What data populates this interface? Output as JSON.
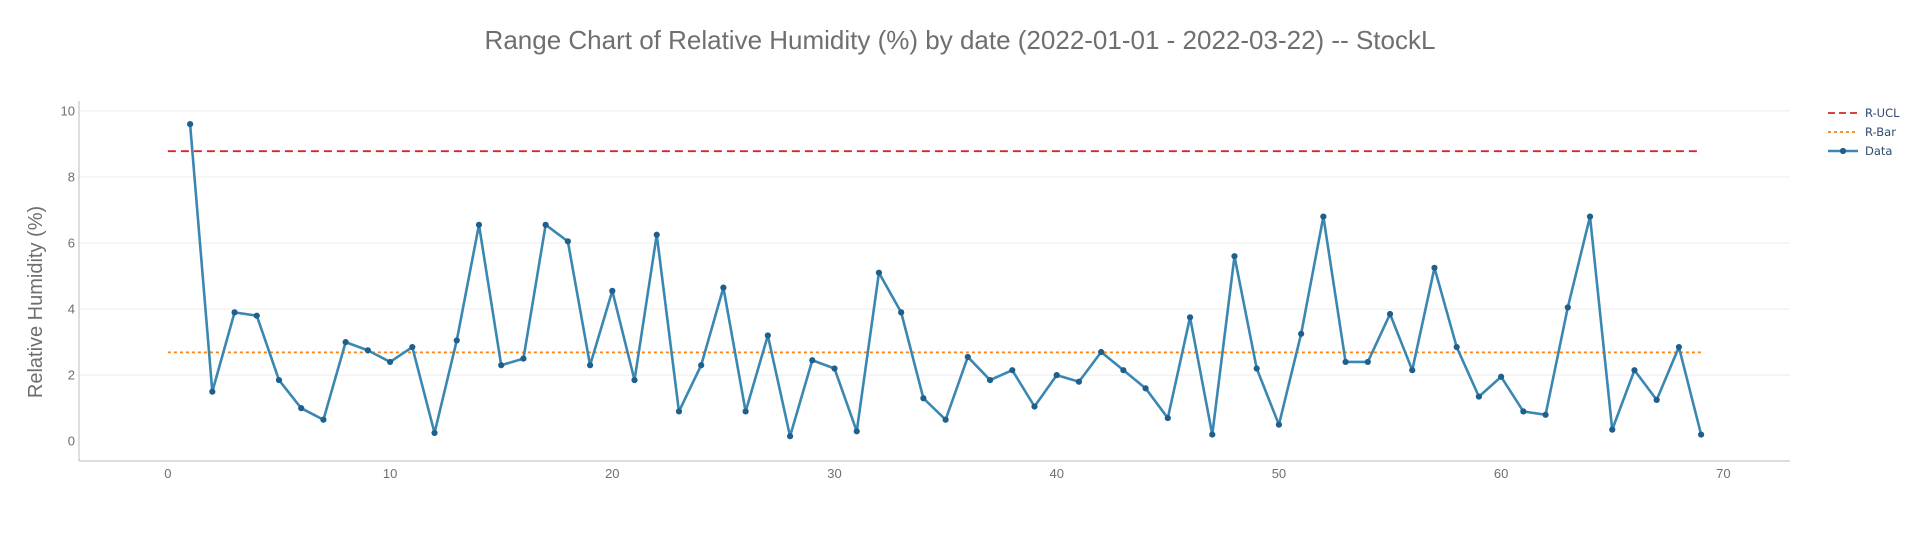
{
  "chart_data": {
    "type": "line",
    "title": "Range Chart of Relative Humidity (%) by date (2022-01-01 - 2022-03-22) -- StockL",
    "xlabel": "",
    "ylabel": "Relative Humidity (%)",
    "xlim": [
      -4,
      73
    ],
    "ylim": [
      -0.6,
      10.3
    ],
    "xticks": [
      0,
      10,
      20,
      30,
      40,
      50,
      60,
      70
    ],
    "yticks": [
      0,
      2,
      4,
      6,
      8,
      10
    ],
    "grid": true,
    "legend_position": "top-right",
    "series": [
      {
        "name": "R-UCL",
        "style": "dashed",
        "color": "#d62728",
        "x": [
          0,
          69
        ],
        "y": [
          8.78,
          8.78
        ]
      },
      {
        "name": "R-Bar",
        "style": "dotted",
        "color": "#ff7f0e",
        "x": [
          0,
          69
        ],
        "y": [
          2.69,
          2.69
        ]
      },
      {
        "name": "Data",
        "style": "line-markers",
        "color": "#3a87b2",
        "marker_color": "#1f5f8b",
        "x": [
          1,
          2,
          3,
          4,
          5,
          6,
          7,
          8,
          9,
          10,
          11,
          12,
          13,
          14,
          15,
          16,
          17,
          18,
          19,
          20,
          21,
          22,
          23,
          24,
          25,
          26,
          27,
          28,
          29,
          30,
          31,
          32,
          33,
          34,
          35,
          36,
          37,
          38,
          39,
          40,
          41,
          42,
          43,
          44,
          45,
          46,
          47,
          48,
          49,
          50,
          51,
          52,
          53,
          54,
          55,
          56,
          57,
          58,
          59,
          60,
          61,
          62,
          63,
          64,
          65,
          66,
          67,
          68,
          69
        ],
        "y": [
          9.6,
          1.5,
          3.9,
          3.8,
          1.85,
          1.0,
          0.65,
          3.0,
          2.75,
          2.4,
          2.85,
          0.25,
          3.05,
          6.55,
          2.3,
          2.5,
          6.55,
          6.05,
          2.3,
          4.55,
          1.85,
          6.25,
          0.9,
          2.3,
          4.65,
          0.9,
          3.2,
          0.15,
          2.45,
          2.2,
          0.3,
          5.1,
          3.9,
          1.3,
          0.65,
          2.55,
          1.85,
          2.15,
          1.05,
          2.0,
          1.8,
          2.7,
          2.15,
          1.6,
          0.7,
          3.75,
          0.2,
          5.6,
          2.2,
          0.5,
          3.25,
          6.8,
          2.4,
          2.4,
          3.85,
          2.15,
          5.25,
          2.85,
          1.35,
          1.95,
          0.9,
          0.8,
          4.05,
          6.8,
          0.35,
          2.15,
          1.25,
          2.85,
          0.2
        ]
      }
    ]
  }
}
